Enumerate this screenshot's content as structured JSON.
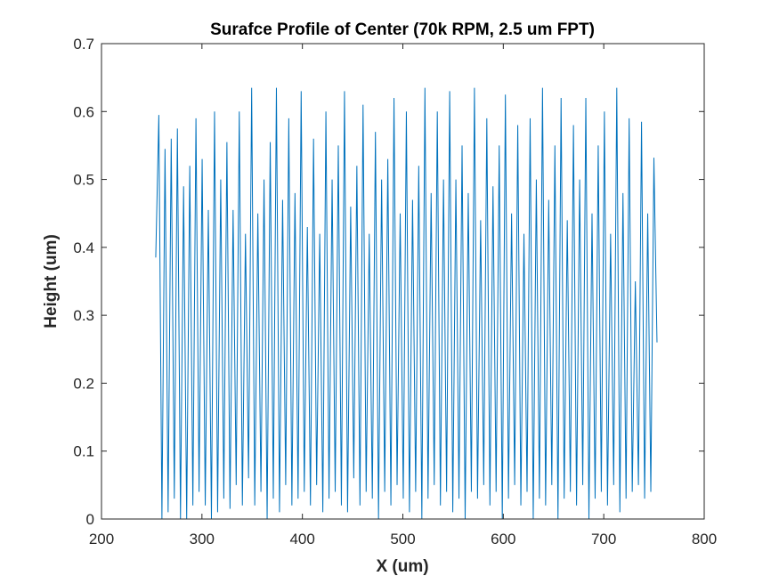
{
  "chart_data": {
    "type": "line",
    "title": "Surafce Profile of Center (70k RPM, 2.5 um FPT)",
    "xlabel": "X (um)",
    "ylabel": "Height (um)",
    "xlim": [
      200,
      800
    ],
    "ylim": [
      0,
      0.7
    ],
    "xticks": [
      200,
      300,
      400,
      500,
      600,
      700,
      800
    ],
    "yticks": [
      0,
      0.1,
      0.2,
      0.3,
      0.4,
      0.5,
      0.6,
      0.7
    ],
    "xtick_labels": [
      "200",
      "300",
      "400",
      "500",
      "600",
      "700",
      "800"
    ],
    "ytick_labels": [
      "0",
      "0.1",
      "0.2",
      "0.3",
      "0.4",
      "0.5",
      "0.6",
      "0.7"
    ],
    "grid": false,
    "line_color": "#0072bd",
    "series": [
      {
        "x_start": 254,
        "x_end": 753,
        "x_step": 2.5,
        "values": [
          0.385,
          0.595,
          0.0,
          0.545,
          0.01,
          0.56,
          0.03,
          0.575,
          0.0,
          0.49,
          0.0,
          0.52,
          0.02,
          0.59,
          0.04,
          0.53,
          0.02,
          0.455,
          0.0,
          0.6,
          0.01,
          0.5,
          0.03,
          0.555,
          0.015,
          0.455,
          0.05,
          0.6,
          0.02,
          0.42,
          0.06,
          0.635,
          0.02,
          0.45,
          0.04,
          0.5,
          0.0,
          0.555,
          0.03,
          0.635,
          0.01,
          0.47,
          0.05,
          0.59,
          0.02,
          0.48,
          0.03,
          0.63,
          0.04,
          0.43,
          0.02,
          0.56,
          0.05,
          0.42,
          0.01,
          0.6,
          0.03,
          0.5,
          0.04,
          0.55,
          0.02,
          0.63,
          0.01,
          0.46,
          0.06,
          0.52,
          0.02,
          0.61,
          0.04,
          0.42,
          0.03,
          0.57,
          0.0,
          0.5,
          0.04,
          0.53,
          0.02,
          0.62,
          0.05,
          0.45,
          0.03,
          0.6,
          0.01,
          0.47,
          0.04,
          0.52,
          0.0,
          0.635,
          0.03,
          0.48,
          0.05,
          0.6,
          0.02,
          0.5,
          0.04,
          0.63,
          0.01,
          0.5,
          0.03,
          0.55,
          0.0,
          0.48,
          0.04,
          0.635,
          0.03,
          0.44,
          0.05,
          0.59,
          0.02,
          0.49,
          0.04,
          0.55,
          0.0,
          0.625,
          0.03,
          0.45,
          0.05,
          0.58,
          0.02,
          0.42,
          0.04,
          0.59,
          0.0,
          0.5,
          0.03,
          0.635,
          0.02,
          0.47,
          0.05,
          0.55,
          0.0,
          0.62,
          0.03,
          0.44,
          0.04,
          0.58,
          0.02,
          0.5,
          0.05,
          0.62,
          0.0,
          0.45,
          0.03,
          0.55,
          0.04,
          0.6,
          0.02,
          0.42,
          0.05,
          0.635,
          0.01,
          0.48,
          0.03,
          0.59,
          0.04,
          0.35,
          0.05,
          0.585,
          0.03,
          0.45,
          0.04,
          0.532,
          0.26
        ]
      }
    ]
  }
}
